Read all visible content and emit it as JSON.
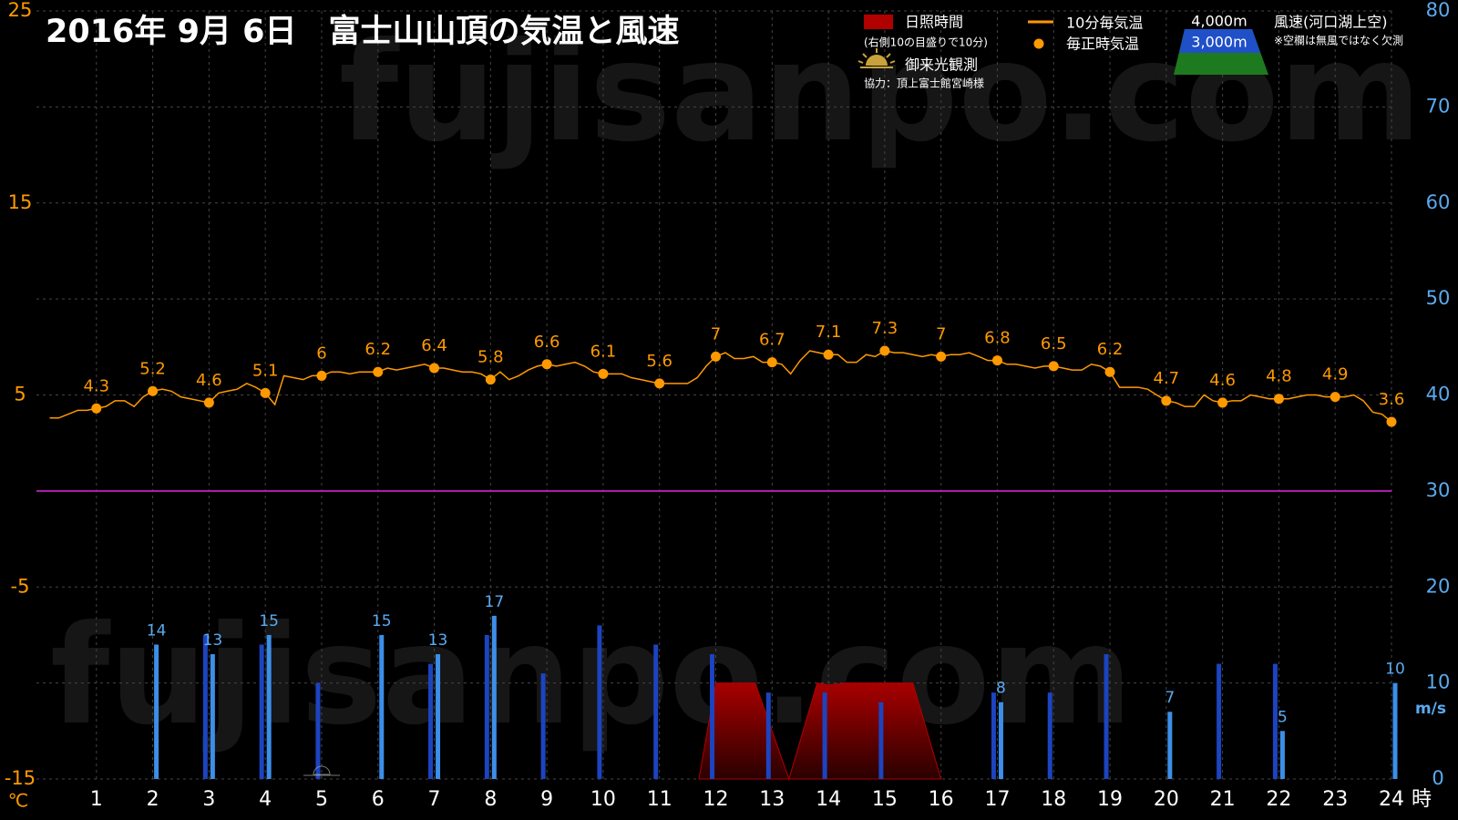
{
  "chart_data": {
    "type": "combo",
    "title": "2016年  9月  6日　富士山山頂の気温と風速",
    "watermark": "fujisanpo.com",
    "x_unit": "時",
    "y_unit": "℃",
    "y2_unit": "m/s",
    "xlim": [
      0,
      24
    ],
    "xticks": [
      1,
      2,
      3,
      4,
      5,
      6,
      7,
      8,
      9,
      10,
      11,
      12,
      13,
      14,
      15,
      16,
      17,
      18,
      19,
      20,
      21,
      22,
      23,
      24
    ],
    "ylim": [
      -15,
      25
    ],
    "yticks": [
      25,
      15,
      5,
      -5,
      -15
    ],
    "y2lim": [
      0,
      80
    ],
    "y2ticks": [
      0,
      10,
      20,
      30,
      40,
      50,
      60,
      70,
      80
    ],
    "grid": true,
    "sunrise_label": "御来光観測",
    "credit": "協力：頂上富士館宮崎様",
    "wind_legend_title": "風速(河口湖上空)",
    "wind_legend_note": "※空欄は無風ではなく欠測",
    "series": [
      {
        "name": "日照時間",
        "note": "(右側10の目盛りで10分)",
        "type": "area",
        "axis": "y2",
        "color": "#b00000",
        "x": [
          11.7,
          12,
          12.7,
          13.3,
          13.8,
          14,
          14.3,
          14.5,
          15.5,
          16
        ],
        "values": [
          0,
          10,
          10,
          0,
          10,
          9.8,
          10,
          10,
          10,
          0
        ]
      },
      {
        "name": "10分毎気温",
        "type": "line",
        "color": "#ff9900",
        "x": [
          0.17,
          0.33,
          0.5,
          0.67,
          0.83,
          1,
          1.17,
          1.33,
          1.5,
          1.67,
          1.83,
          2,
          2.17,
          2.33,
          2.5,
          2.67,
          2.83,
          3,
          3.17,
          3.33,
          3.5,
          3.67,
          3.83,
          4,
          4.17,
          4.33,
          4.5,
          4.67,
          4.83,
          5,
          5.17,
          5.33,
          5.5,
          5.67,
          5.83,
          6,
          6.17,
          6.33,
          6.5,
          6.67,
          6.83,
          7,
          7.17,
          7.33,
          7.5,
          7.67,
          7.83,
          8,
          8.17,
          8.33,
          8.5,
          8.67,
          8.83,
          9,
          9.17,
          9.33,
          9.5,
          9.67,
          9.83,
          10,
          10.17,
          10.33,
          10.5,
          10.67,
          10.83,
          11,
          11.17,
          11.33,
          11.5,
          11.67,
          11.83,
          12,
          12.17,
          12.33,
          12.5,
          12.67,
          12.83,
          13,
          13.17,
          13.33,
          13.5,
          13.67,
          13.83,
          14,
          14.17,
          14.33,
          14.5,
          14.67,
          14.83,
          15,
          15.17,
          15.33,
          15.5,
          15.67,
          15.83,
          16,
          16.17,
          16.33,
          16.5,
          16.67,
          16.83,
          17,
          17.17,
          17.33,
          17.5,
          17.67,
          17.83,
          18,
          18.17,
          18.33,
          18.5,
          18.67,
          18.83,
          19,
          19.17,
          19.33,
          19.5,
          19.67,
          19.83,
          20,
          20.17,
          20.33,
          20.5,
          20.67,
          20.83,
          21,
          21.17,
          21.33,
          21.5,
          21.67,
          21.83,
          22,
          22.17,
          22.33,
          22.5,
          22.67,
          22.83,
          23,
          23.17,
          23.33,
          23.5,
          23.67,
          23.83,
          24
        ],
        "values": [
          3.8,
          3.8,
          4.0,
          4.2,
          4.2,
          4.3,
          4.4,
          4.7,
          4.7,
          4.4,
          4.9,
          5.2,
          5.3,
          5.2,
          4.9,
          4.8,
          4.7,
          4.6,
          5.1,
          5.2,
          5.3,
          5.6,
          5.4,
          5.1,
          4.5,
          6.0,
          5.9,
          5.8,
          6.0,
          6.0,
          6.2,
          6.2,
          6.1,
          6.2,
          6.2,
          6.2,
          6.4,
          6.3,
          6.4,
          6.5,
          6.6,
          6.4,
          6.4,
          6.3,
          6.2,
          6.2,
          6.1,
          5.8,
          6.2,
          5.8,
          6.0,
          6.3,
          6.5,
          6.6,
          6.5,
          6.6,
          6.7,
          6.5,
          6.2,
          6.1,
          6.1,
          6.1,
          5.9,
          5.8,
          5.7,
          5.6,
          5.6,
          5.6,
          5.6,
          5.9,
          6.5,
          7.0,
          7.2,
          6.9,
          6.9,
          7.0,
          6.7,
          6.7,
          6.6,
          6.1,
          6.8,
          7.3,
          7.2,
          7.1,
          7.1,
          6.7,
          6.7,
          7.1,
          7.0,
          7.3,
          7.2,
          7.2,
          7.1,
          7.0,
          7.1,
          7.0,
          7.1,
          7.1,
          7.2,
          7.0,
          6.8,
          6.8,
          6.6,
          6.6,
          6.5,
          6.4,
          6.5,
          6.5,
          6.4,
          6.3,
          6.3,
          6.6,
          6.5,
          6.2,
          5.4,
          5.4,
          5.4,
          5.3,
          5.0,
          4.7,
          4.6,
          4.4,
          4.4,
          5.0,
          4.7,
          4.6,
          4.7,
          4.7,
          5.0,
          4.9,
          4.8,
          4.8,
          4.8,
          4.9,
          5.0,
          5.0,
          4.9,
          4.9,
          4.9,
          5.0,
          4.7,
          4.1,
          4.0,
          3.6
        ]
      },
      {
        "name": "毎正時気温",
        "type": "scatter",
        "color": "#ff9900",
        "labels": true,
        "x": [
          1,
          2,
          3,
          4,
          5,
          6,
          7,
          8,
          9,
          10,
          11,
          12,
          13,
          14,
          15,
          16,
          17,
          18,
          19,
          20,
          21,
          22,
          23,
          24
        ],
        "values": [
          4.3,
          5.2,
          4.6,
          5.1,
          6,
          6.2,
          6.4,
          5.8,
          6.6,
          6.1,
          5.6,
          7,
          6.7,
          7.1,
          7.3,
          7,
          6.8,
          6.5,
          6.2,
          4.7,
          4.6,
          4.8,
          4.9,
          3.6
        ]
      },
      {
        "name": "4,000m",
        "type": "bar",
        "axis": "y2",
        "color": "#1c44c0",
        "labels": false,
        "x": [
          1,
          2,
          3,
          4,
          5,
          6,
          7,
          8,
          9,
          10,
          11,
          12,
          13,
          14,
          15,
          16,
          17,
          18,
          19,
          20,
          21,
          22,
          23,
          24
        ],
        "values": [
          null,
          null,
          15,
          14,
          10,
          null,
          12,
          15,
          11,
          16,
          14,
          13,
          9,
          9,
          8,
          null,
          9,
          9,
          13,
          null,
          12,
          12,
          null,
          null
        ]
      },
      {
        "name": "3,000m",
        "type": "bar",
        "axis": "y2",
        "color": "#3d8ee8",
        "labels": true,
        "x": [
          1,
          2,
          3,
          4,
          5,
          6,
          7,
          8,
          9,
          10,
          11,
          12,
          13,
          14,
          15,
          16,
          17,
          18,
          19,
          20,
          21,
          22,
          23,
          24
        ],
        "values": [
          null,
          14,
          13,
          15,
          null,
          15,
          13,
          17,
          null,
          null,
          null,
          null,
          null,
          null,
          null,
          null,
          8,
          null,
          null,
          7,
          null,
          5,
          null,
          10
        ]
      }
    ]
  }
}
